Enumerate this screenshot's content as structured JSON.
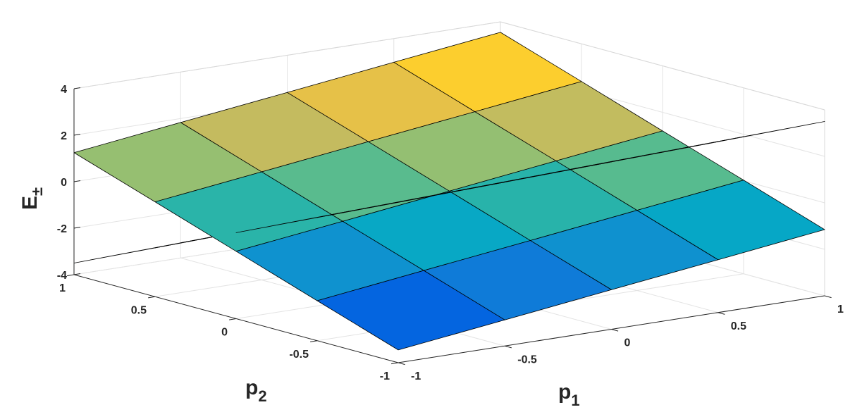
{
  "chart_data": {
    "type": "surface",
    "zlabel": {
      "text": "E",
      "sub": "±"
    },
    "xlabel": {
      "text": "p",
      "sub": "1"
    },
    "ylabel": {
      "text": "p",
      "sub": "2"
    },
    "x": [
      -1,
      -0.5,
      0,
      0.5,
      1
    ],
    "y": [
      -1,
      -0.5,
      0,
      0.5,
      1
    ],
    "series": [
      {
        "z": [
          [
            -3.45,
            -2.88,
            -2.3,
            -1.73,
            -1.15
          ],
          [
            -2.28,
            -1.7,
            -1.13,
            -0.55,
            0.03
          ],
          [
            -1.1,
            -0.53,
            0.05,
            0.63,
            1.2
          ],
          [
            0.08,
            0.65,
            1.23,
            1.8,
            2.38
          ],
          [
            1.25,
            1.83,
            2.4,
            2.98,
            3.55
          ]
        ]
      },
      {
        "z": [
          [
            2.9,
            3.05,
            3.2,
            3.35,
            3.5
          ],
          [
            1.3,
            1.45,
            1.6,
            1.75,
            1.9
          ],
          [
            -0.3,
            -0.15,
            0,
            0.15,
            0.3
          ],
          [
            -1.9,
            -1.75,
            -1.6,
            -1.45,
            -1.3
          ],
          [
            -3.5,
            -3.35,
            -3.2,
            -3.05,
            -2.9
          ]
        ]
      }
    ],
    "xlim": [
      -1,
      1
    ],
    "ylim": [
      -1,
      1
    ],
    "zlim": [
      -4,
      4
    ],
    "xticks": [
      -1,
      -0.5,
      0,
      0.5,
      1
    ],
    "yticks": [
      -1,
      -0.5,
      0,
      0.5,
      1
    ],
    "zticks": [
      -4,
      -2,
      0,
      2,
      4
    ],
    "grid": true,
    "colormap": "parula",
    "edgecolor": "#000000"
  }
}
